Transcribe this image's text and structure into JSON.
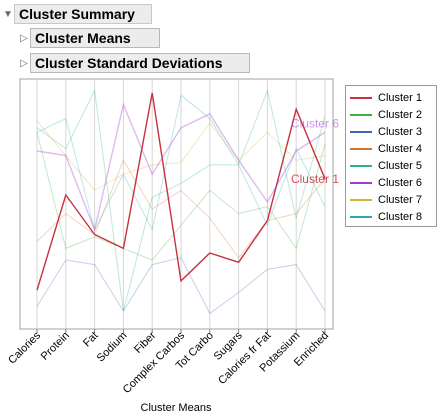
{
  "outline": {
    "summary_title": "Cluster Summary",
    "means_title": "Cluster Means",
    "sd_title": "Cluster Standard Deviations"
  },
  "chart_data": {
    "type": "line",
    "xlabel": "Cluster Means",
    "categories": [
      "Calories",
      "Protein",
      "Fat",
      "Sodium",
      "Fiber",
      "Complex Carbos",
      "Tot Carbo",
      "Sugars",
      "Calories fr Fat",
      "Potassium",
      "Enriched"
    ],
    "ylim": [
      0,
      1
    ],
    "grid": true,
    "legend_position": "right",
    "series": [
      {
        "name": "Cluster 1",
        "color": "#c8323c",
        "highlighted": true,
        "values": [
          0.12,
          0.53,
          0.36,
          0.3,
          0.97,
          0.16,
          0.28,
          0.24,
          0.42,
          0.9,
          0.6
        ]
      },
      {
        "name": "Cluster 2",
        "color": "#3fae44",
        "highlighted": false,
        "values": [
          0.8,
          0.3,
          0.35,
          0.3,
          0.25,
          0.4,
          0.55,
          0.45,
          0.48,
          0.3,
          0.75
        ]
      },
      {
        "name": "Cluster 3",
        "color": "#3c68b4",
        "highlighted": false,
        "values": [
          0.05,
          0.25,
          0.23,
          0.03,
          0.23,
          0.26,
          0.02,
          0.11,
          0.21,
          0.23,
          0.03
        ]
      },
      {
        "name": "Cluster 4",
        "color": "#d2732a",
        "highlighted": false,
        "values": [
          0.33,
          0.45,
          0.36,
          0.68,
          0.47,
          0.55,
          0.43,
          0.26,
          0.42,
          0.45,
          0.6
        ]
      },
      {
        "name": "Cluster 5",
        "color": "#28b487",
        "highlighted": false,
        "values": [
          0.82,
          0.73,
          0.98,
          0.03,
          0.52,
          0.58,
          0.66,
          0.66,
          0.98,
          0.43,
          0.87
        ]
      },
      {
        "name": "Cluster 6",
        "color": "#a03cd2",
        "highlighted": true,
        "values": [
          0.72,
          0.7,
          0.38,
          0.92,
          0.62,
          0.82,
          0.88,
          0.68,
          0.5,
          0.72,
          0.8
        ]
      },
      {
        "name": "Cluster 7",
        "color": "#d2b42a",
        "highlighted": false,
        "values": [
          0.85,
          0.7,
          0.55,
          0.62,
          0.66,
          0.67,
          0.84,
          0.68,
          0.8,
          0.68,
          0.7
        ]
      },
      {
        "name": "Cluster 8",
        "color": "#28aab4",
        "highlighted": false,
        "values": [
          0.8,
          0.86,
          0.38,
          0.62,
          0.38,
          0.96,
          0.86,
          0.66,
          0.4,
          0.73,
          0.48
        ]
      }
    ],
    "annotations": [
      {
        "text": "Cluster 6",
        "series": "Cluster 6"
      },
      {
        "text": "Cluster 1",
        "series": "Cluster 1"
      }
    ]
  }
}
